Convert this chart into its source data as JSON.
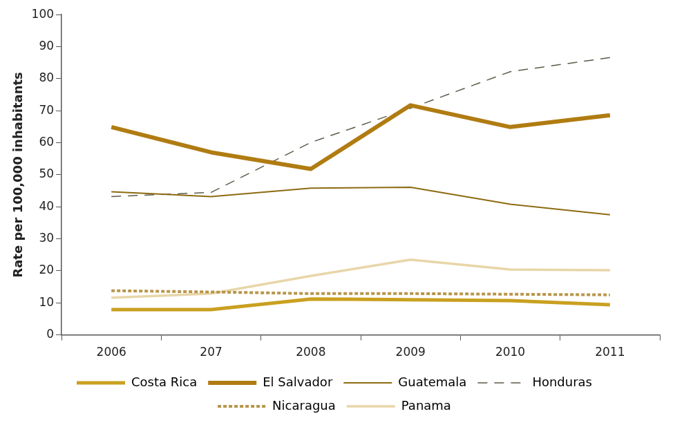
{
  "chart_data": {
    "type": "line",
    "ylabel": "Rate per 100,000 inhabitants",
    "categories": [
      "2006",
      "207",
      "2008",
      "2009",
      "2010",
      "2011"
    ],
    "ylim": [
      0,
      100
    ],
    "yticks": [
      0,
      10,
      20,
      30,
      40,
      50,
      60,
      70,
      80,
      90,
      100
    ],
    "grid": false,
    "legend": "bottom",
    "marker": "none",
    "series": [
      {
        "name": "Costa Rica",
        "color": "#c9a020",
        "line_style": "solid",
        "values": [
          7.9,
          7.9,
          11.2,
          11,
          10.7,
          9.4
        ]
      },
      {
        "name": "El Salvador",
        "color": "#b07c12",
        "line_style": "solid",
        "values": [
          64.9,
          57,
          51.8,
          71.7,
          64.9,
          68.6
        ]
      },
      {
        "name": "Guatemala",
        "color": "#8c6a10",
        "line_style": "solid",
        "values": [
          44.7,
          43.2,
          45.8,
          46.1,
          40.8,
          37.5
        ]
      },
      {
        "name": "Honduras",
        "color": "#5e5848",
        "line_style": "dashed",
        "values": [
          43.2,
          44.5,
          60.1,
          70.8,
          82.2,
          86.6
        ]
      },
      {
        "name": "Nicaragua",
        "color": "#b8964a",
        "line_style": "dotted",
        "values": [
          13.8,
          13.4,
          12.9,
          12.9,
          12.7,
          12.5
        ]
      },
      {
        "name": "Panama",
        "color": "#e8d6a8",
        "line_style": "solid",
        "values": [
          11.6,
          12.9,
          18.4,
          23.5,
          20.4,
          20.2
        ]
      }
    ]
  }
}
